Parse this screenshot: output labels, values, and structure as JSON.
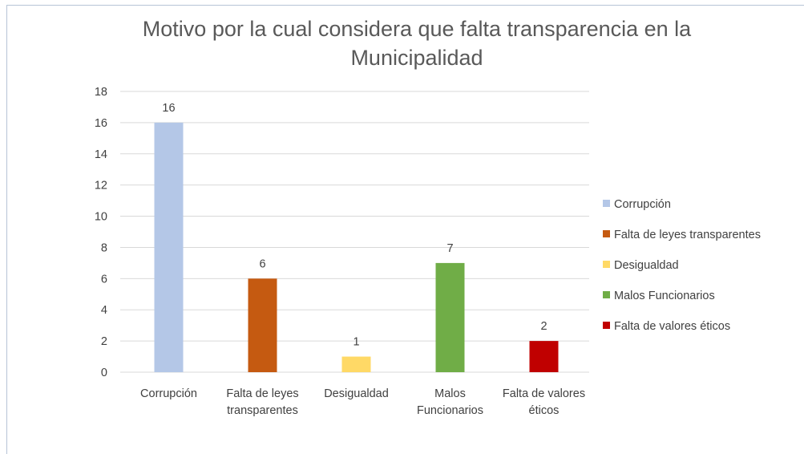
{
  "chart_data": {
    "type": "bar",
    "title": "Motivo por la cual considera que falta transparencia en la Municipalidad",
    "categories": [
      "Corrupción",
      "Falta de leyes transparentes",
      "Desigualdad",
      "Malos Funcionarios",
      "Falta de valores éticos"
    ],
    "values": [
      16,
      6,
      1,
      7,
      2
    ],
    "colors": [
      "#b4c7e7",
      "#c55a11",
      "#ffd966",
      "#70ad47",
      "#c00000"
    ],
    "ylim": [
      0,
      18
    ],
    "yticks": [
      0,
      2,
      4,
      6,
      8,
      10,
      12,
      14,
      16,
      18
    ],
    "grid": true,
    "legend": "right"
  }
}
